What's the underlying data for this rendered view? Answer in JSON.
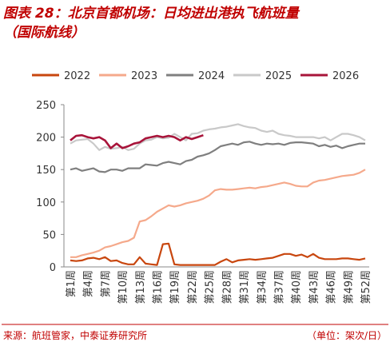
{
  "chart_data": {
    "type": "line",
    "title_lines": [
      "图表 28：北京首都机场：日均进出港执飞航班量",
      "（国际航线）"
    ],
    "source": "来源：航班管家，中泰证券研究所",
    "unit": "（单位：架次/日）",
    "categories": [
      "第1周",
      null,
      null,
      "第4周",
      null,
      null,
      "第7周",
      null,
      null,
      "第10周",
      null,
      null,
      "第13周",
      null,
      null,
      "第16周",
      null,
      null,
      "第19周",
      null,
      null,
      "第22周",
      null,
      null,
      "第25周",
      null,
      null,
      "第28周",
      null,
      null,
      "第31周",
      null,
      null,
      "第34周",
      null,
      null,
      "第37周",
      null,
      null,
      "第40周",
      null,
      null,
      "第43周",
      null,
      null,
      "第46周",
      null,
      null,
      "第49周",
      null,
      null,
      "第52周"
    ],
    "ylim": [
      0,
      250
    ],
    "yticks": [
      0,
      50,
      100,
      150,
      200,
      250
    ],
    "grid": false,
    "legend": "top",
    "series": [
      {
        "name": "2022",
        "color": "#c8460e",
        "values": [
          10,
          9,
          10,
          13,
          14,
          12,
          15,
          9,
          10,
          6,
          4,
          4,
          15,
          5,
          4,
          3,
          35,
          36,
          4,
          3,
          3,
          3,
          3,
          3,
          3,
          3,
          8,
          12,
          7,
          10,
          11,
          12,
          11,
          12,
          13,
          14,
          17,
          20,
          20,
          17,
          19,
          15,
          20,
          14,
          12,
          12,
          12,
          13,
          13,
          12,
          11,
          13
        ]
      },
      {
        "name": "2023",
        "color": "#f5a98b",
        "values": [
          15,
          15,
          18,
          20,
          22,
          25,
          30,
          32,
          35,
          38,
          40,
          45,
          70,
          72,
          78,
          85,
          90,
          95,
          93,
          95,
          98,
          100,
          102,
          105,
          110,
          118,
          120,
          119,
          119,
          120,
          121,
          122,
          121,
          123,
          124,
          126,
          128,
          130,
          128,
          125,
          124,
          124,
          130,
          133,
          134,
          136,
          138,
          140,
          141,
          142,
          145,
          150
        ]
      },
      {
        "name": "2024",
        "color": "#7f7f7f",
        "values": [
          150,
          152,
          148,
          150,
          152,
          147,
          146,
          150,
          150,
          148,
          152,
          152,
          152,
          158,
          157,
          156,
          160,
          162,
          160,
          158,
          163,
          165,
          170,
          172,
          175,
          180,
          186,
          188,
          190,
          188,
          192,
          193,
          190,
          188,
          190,
          189,
          190,
          188,
          191,
          192,
          192,
          191,
          190,
          186,
          188,
          185,
          187,
          183,
          186,
          188,
          190,
          190
        ]
      },
      {
        "name": "2025",
        "color": "#c9c9c9",
        "values": [
          190,
          195,
          196,
          197,
          190,
          180,
          185,
          182,
          183,
          185,
          180,
          182,
          190,
          195,
          196,
          200,
          198,
          199,
          205,
          200,
          195,
          205,
          206,
          210,
          212,
          213,
          215,
          216,
          218,
          220,
          217,
          215,
          214,
          210,
          208,
          210,
          205,
          203,
          202,
          200,
          200,
          200,
          200,
          198,
          200,
          195,
          200,
          205,
          205,
          203,
          200,
          195
        ]
      },
      {
        "name": "2026",
        "color": "#a8143a",
        "values": [
          195,
          202,
          203,
          200,
          198,
          200,
          195,
          183,
          190,
          183,
          186,
          190,
          192,
          198,
          200,
          202,
          200,
          202,
          200,
          195,
          200,
          197,
          200,
          203,
          null,
          null,
          null,
          null,
          null,
          null,
          null,
          null,
          null,
          null,
          null,
          null,
          null,
          null,
          null,
          null,
          null,
          null,
          null,
          null,
          null,
          null,
          null,
          null,
          null,
          null,
          null,
          null
        ]
      }
    ]
  }
}
